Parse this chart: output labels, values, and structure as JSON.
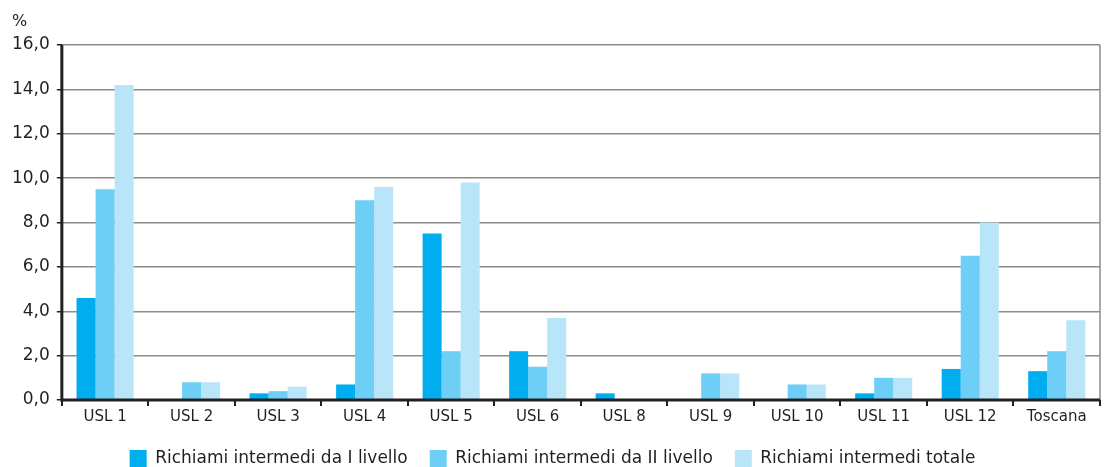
{
  "chart_data": {
    "type": "bar",
    "ylabel": "%",
    "categories": [
      "USL 1",
      "USL 2",
      "USL 3",
      "USL 4",
      "USL 5",
      "USL 6",
      "USL 8",
      "USL 9",
      "USL 10",
      "USL 11",
      "USL 12",
      "Toscana"
    ],
    "series": [
      {
        "name": "Richiami intermedi da I livello",
        "color": "#00aeef",
        "values": [
          4.6,
          0,
          0.3,
          0.7,
          7.5,
          2.2,
          0.3,
          0,
          0,
          0.3,
          1.4,
          1.3
        ]
      },
      {
        "name": "Richiami intermedi da II livello",
        "color": "#6dcff6",
        "values": [
          9.5,
          0.8,
          0.4,
          9.0,
          2.2,
          1.5,
          0,
          1.2,
          0.7,
          1.0,
          6.5,
          2.2
        ]
      },
      {
        "name": "Richiami intermedi totale",
        "color": "#b9e5f9",
        "values": [
          14.2,
          0.8,
          0.6,
          9.6,
          9.8,
          3.7,
          0,
          1.2,
          0.7,
          1.0,
          8.0,
          3.6
        ]
      }
    ],
    "ylim": [
      0,
      16
    ],
    "yticks": [
      {
        "value": 0,
        "label": "0,0"
      },
      {
        "value": 2,
        "label": "2,0"
      },
      {
        "value": 4,
        "label": "4,0"
      },
      {
        "value": 6,
        "label": "6,0"
      },
      {
        "value": 8,
        "label": "8,0"
      },
      {
        "value": 10,
        "label": "10,0"
      },
      {
        "value": 12,
        "label": "12,0"
      },
      {
        "value": 14,
        "label": "14,0"
      },
      {
        "value": 16,
        "label": "16,0"
      }
    ],
    "grid": "y",
    "legend": "bottom"
  }
}
